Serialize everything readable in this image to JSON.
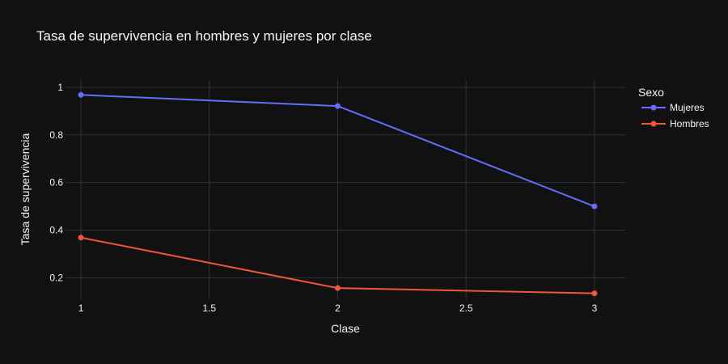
{
  "chart_data": {
    "type": "line",
    "title": "Tasa de supervivencia en hombres y mujeres por clase",
    "xlabel": "Clase",
    "ylabel": "Tasa de supervivencia",
    "xlim": [
      0.94,
      3.12
    ],
    "ylim": [
      0.11,
      1.03
    ],
    "x_ticks": [
      1,
      1.5,
      2,
      2.5,
      3
    ],
    "y_ticks": [
      0.2,
      0.4,
      0.6,
      0.8,
      1
    ],
    "grid": true,
    "legend": {
      "title": "Sexo",
      "position": "right"
    },
    "background_color": "#111111",
    "grid_color": "#283442",
    "text_color": "#f2f5fa",
    "series": [
      {
        "name": "Mujeres",
        "color": "#636efa",
        "x": [
          1,
          2,
          3
        ],
        "values": [
          0.968,
          0.921,
          0.5
        ]
      },
      {
        "name": "Hombres",
        "color": "#ef553b",
        "x": [
          1,
          2,
          3
        ],
        "values": [
          0.369,
          0.157,
          0.135
        ]
      }
    ]
  }
}
